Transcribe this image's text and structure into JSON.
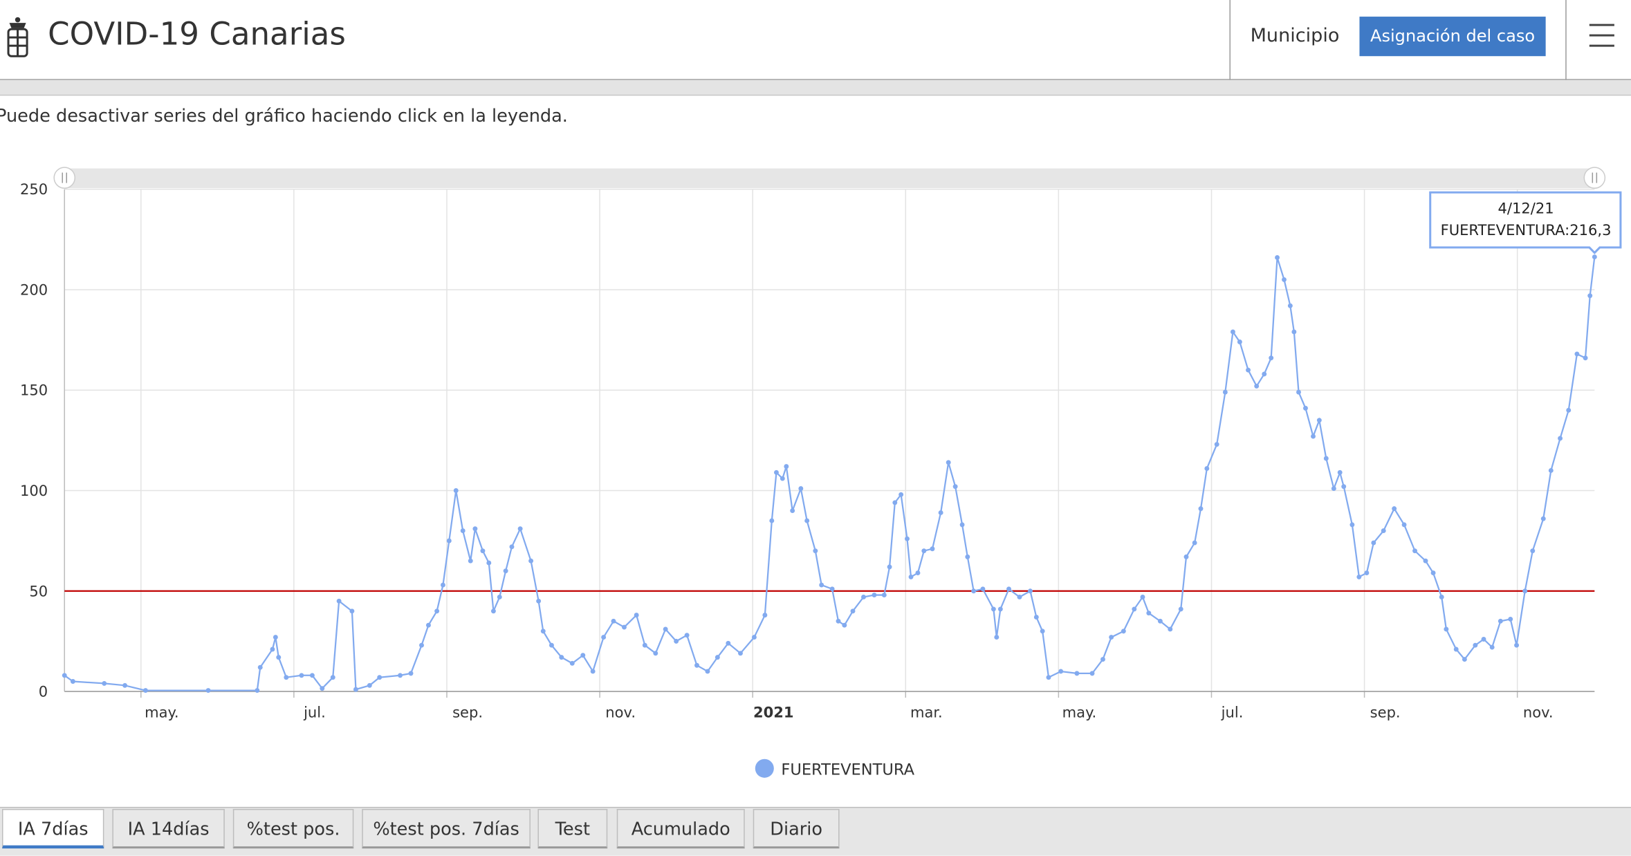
{
  "header": {
    "title": "COVID-19 Canarias",
    "nav_link": "Municipio",
    "nav_button": "Asignación del caso"
  },
  "hint": "Puede desactivar series del gráfico haciendo click en la leyenda.",
  "chart_data": {
    "type": "line",
    "x": [
      3.0,
      3.11,
      3.52,
      3.79,
      4.06,
      4.88,
      5.52,
      5.56,
      5.72,
      5.76,
      5.8,
      5.9,
      6.1,
      6.24,
      6.37,
      6.51,
      6.59,
      6.76,
      6.81,
      6.99,
      7.12,
      7.39,
      7.53,
      7.67,
      7.76,
      7.87,
      7.95,
      8.03,
      8.12,
      8.21,
      8.31,
      8.37,
      8.47,
      8.55,
      8.61,
      8.69,
      8.77,
      8.85,
      8.96,
      9.1,
      9.2,
      9.26,
      9.37,
      9.5,
      9.64,
      9.78,
      9.91,
      10.05,
      10.18,
      10.32,
      10.48,
      10.59,
      10.73,
      10.86,
      11.0,
      11.14,
      11.27,
      11.41,
      11.54,
      11.68,
      11.84,
      12.02,
      12.16,
      12.25,
      12.31,
      12.39,
      12.44,
      12.52,
      12.63,
      12.71,
      12.82,
      12.9,
      13.04,
      13.12,
      13.2,
      13.31,
      13.45,
      13.59,
      13.72,
      13.79,
      13.86,
      13.94,
      14.02,
      14.07,
      14.16,
      14.24,
      14.35,
      14.46,
      14.56,
      14.65,
      14.74,
      14.81,
      14.89,
      15.01,
      15.15,
      15.19,
      15.24,
      15.35,
      15.49,
      15.63,
      15.71,
      15.79,
      15.87,
      16.03,
      16.24,
      16.44,
      16.58,
      16.69,
      16.85,
      16.99,
      17.1,
      17.18,
      17.33,
      17.46,
      17.6,
      17.67,
      17.78,
      17.86,
      17.94,
      18.07,
      18.18,
      18.28,
      18.37,
      18.48,
      18.59,
      18.69,
      18.78,
      18.86,
      18.95,
      19.03,
      19.08,
      19.14,
      19.23,
      19.33,
      19.41,
      19.5,
      19.6,
      19.68,
      19.73,
      19.84,
      19.93,
      20.03,
      20.12,
      20.25,
      20.39,
      20.52,
      20.66,
      20.8,
      20.9,
      21.01,
      21.07,
      21.2,
      21.31,
      21.45,
      21.56,
      21.67,
      21.78,
      21.91,
      21.99,
      22.1,
      22.2,
      22.34,
      22.44,
      22.56,
      22.67,
      22.78,
      22.89,
      22.95,
      23.01
    ],
    "series": [
      {
        "name": "FUERTEVENTURA",
        "color": "#82aaef",
        "values": [
          8,
          5,
          4,
          3,
          0.5,
          0.5,
          0.5,
          12,
          21,
          27,
          17,
          7,
          8,
          8,
          1.5,
          7,
          45,
          40,
          1,
          3,
          7,
          8,
          9,
          23,
          33,
          40,
          53,
          75,
          100,
          80,
          65,
          81,
          70,
          64,
          40,
          47,
          60,
          72,
          81,
          65,
          45,
          30,
          23,
          17,
          14,
          18,
          10,
          27,
          35,
          32,
          38,
          23,
          19,
          31,
          25,
          28,
          13,
          10,
          17,
          24,
          19,
          27,
          38,
          85,
          109,
          106,
          112,
          90,
          101,
          85,
          70,
          53,
          51,
          35,
          33,
          40,
          47,
          48,
          48,
          62,
          94,
          98,
          76,
          57,
          59,
          70,
          71,
          89,
          114,
          102,
          83,
          67,
          50,
          51,
          41,
          27,
          41,
          51,
          47,
          50,
          37,
          30,
          7,
          10,
          9,
          9,
          16,
          27,
          30,
          41,
          47,
          39,
          35,
          31,
          41,
          67,
          74,
          91,
          111,
          123,
          149,
          179,
          174,
          160,
          152,
          158,
          166,
          216,
          205,
          192,
          179,
          149,
          141,
          127,
          135,
          116,
          101,
          109,
          102,
          83,
          57,
          59,
          74,
          80,
          91,
          83,
          70,
          65,
          59,
          47,
          31,
          21,
          16,
          23,
          26,
          22,
          35,
          36,
          23,
          50,
          70,
          86,
          110,
          126,
          140,
          168,
          166,
          197,
          216.3
        ]
      }
    ],
    "xlim": [
      3,
      23.01
    ],
    "xticks": [
      {
        "value": 4,
        "label": "may."
      },
      {
        "value": 6,
        "label": "jul."
      },
      {
        "value": 8,
        "label": "sep."
      },
      {
        "value": 10,
        "label": "nov."
      },
      {
        "value": 12,
        "label": "2021"
      },
      {
        "value": 14,
        "label": "mar."
      },
      {
        "value": 16,
        "label": "may."
      },
      {
        "value": 18,
        "label": "jul."
      },
      {
        "value": 20,
        "label": "sep."
      },
      {
        "value": 22,
        "label": "nov."
      }
    ],
    "ylim": [
      0,
      250
    ],
    "yticks": [
      0,
      50,
      100,
      150,
      200,
      250
    ],
    "grid": true,
    "reference_line": {
      "value": 50,
      "color": "#c00000"
    },
    "legend": "bottom",
    "tooltip": {
      "date": "4/12/21",
      "text": "FUERTEVENTURA:216,3"
    }
  },
  "tabs": [
    "IA 7días",
    "IA 14días",
    "%test pos.",
    "%test pos. 7días",
    "Test",
    "Acumulado",
    "Diario"
  ]
}
